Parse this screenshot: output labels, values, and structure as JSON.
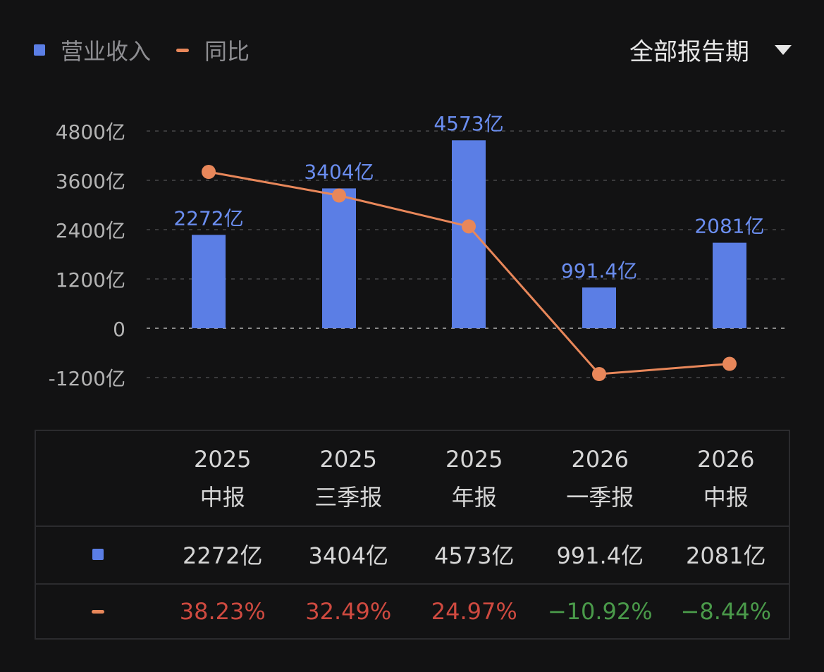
{
  "legend": {
    "revenue_label": "营业收入",
    "yoy_label": "同比",
    "revenue_color": "#5b7ee5",
    "yoy_color": "#e8875a"
  },
  "period_selector": {
    "label": "全部报告期"
  },
  "chart_data": {
    "type": "bar",
    "categories": [
      "2025中报",
      "2025三季报",
      "2025年报",
      "2026一季报",
      "2026中报"
    ],
    "series": [
      {
        "name": "营业收入",
        "type": "bar",
        "values": [
          2272,
          3404,
          4573,
          991.4,
          2081
        ],
        "labels": [
          "2272亿",
          "3404亿",
          "4573亿",
          "991.4亿",
          "2081亿"
        ],
        "color": "#5b7ee5"
      },
      {
        "name": "同比",
        "type": "line",
        "values": [
          38.23,
          32.49,
          24.97,
          -10.92,
          -8.44
        ],
        "color": "#e8875a"
      }
    ],
    "y_ticks": [
      "4800亿",
      "3600亿",
      "2400亿",
      "1200亿",
      "0",
      "-1200亿"
    ],
    "y_tick_values": [
      4800,
      3600,
      2400,
      1200,
      0,
      -1200
    ],
    "ylim": [
      -1200,
      4800
    ],
    "grid": true
  },
  "table": {
    "headers": [
      {
        "year": "2025",
        "period": "中报"
      },
      {
        "year": "2025",
        "period": "三季报"
      },
      {
        "year": "2025",
        "period": "年报"
      },
      {
        "year": "2026",
        "period": "一季报"
      },
      {
        "year": "2026",
        "period": "中报"
      }
    ],
    "revenue_row": [
      "2272亿",
      "3404亿",
      "4573亿",
      "991.4亿",
      "2081亿"
    ],
    "yoy_row": [
      "38.23%",
      "32.49%",
      "24.97%",
      "−10.92%",
      "−8.44%"
    ],
    "yoy_colors": [
      "#cf4a40",
      "#cf4a40",
      "#cf4a40",
      "#4a9a4a",
      "#4a9a4a"
    ]
  }
}
